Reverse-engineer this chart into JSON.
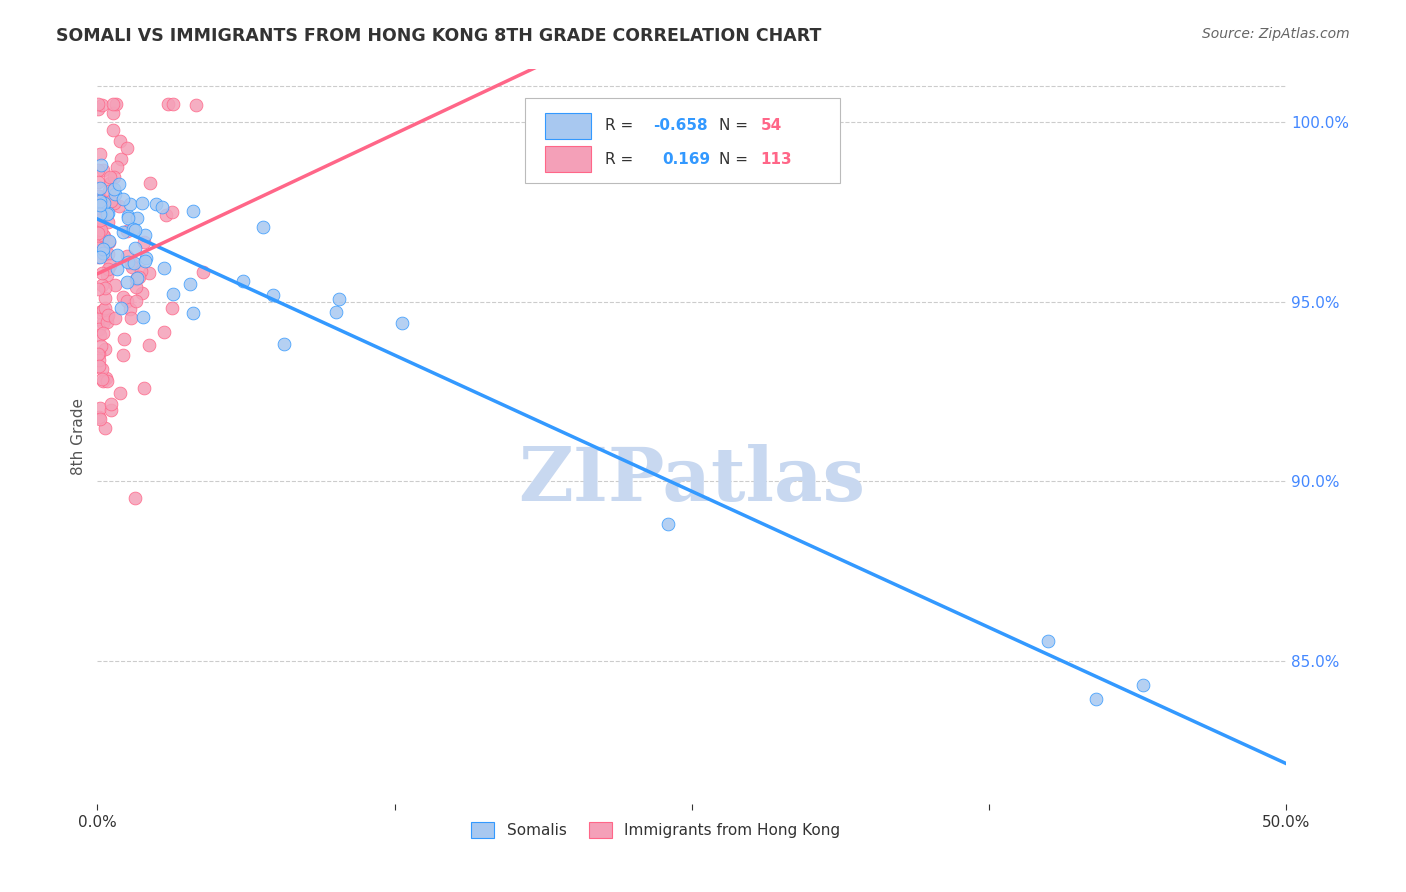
{
  "title": "SOMALI VS IMMIGRANTS FROM HONG KONG 8TH GRADE CORRELATION CHART",
  "source": "Source: ZipAtlas.com",
  "ylabel": "8th Grade",
  "xlim": [
    0.0,
    50.0
  ],
  "ylim": [
    81.0,
    101.5
  ],
  "blue_R": -0.658,
  "blue_N": 54,
  "pink_R": 0.169,
  "pink_N": 113,
  "blue_color": "#A8C8F0",
  "pink_color": "#F4A0B8",
  "blue_line_color": "#3399FF",
  "pink_line_color": "#FF6688",
  "watermark": "ZIPatlas",
  "watermark_color": "#C8D8F0",
  "legend_label_blue": "Somalis",
  "legend_label_pink": "Immigrants from Hong Kong"
}
